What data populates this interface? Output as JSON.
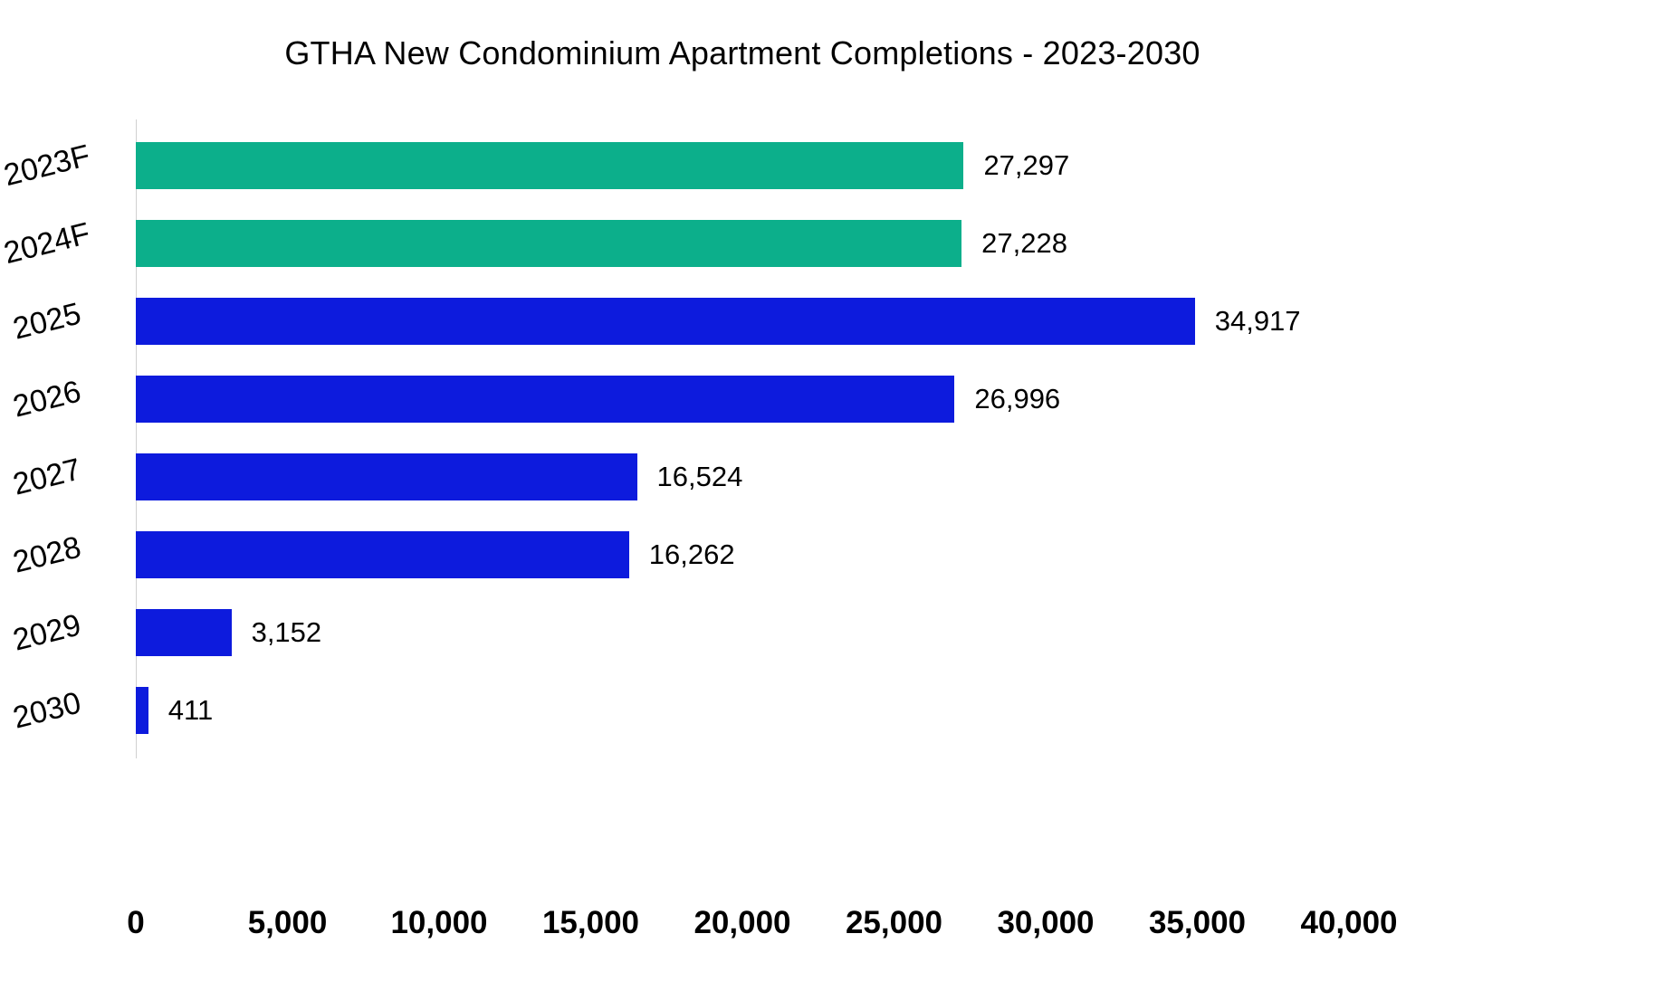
{
  "chart_data": {
    "type": "bar",
    "orientation": "horizontal",
    "title": "GTHA New Condominium Apartment Completions - 2023-2030",
    "categories": [
      "2023F",
      "2024F",
      "2025",
      "2026",
      "2027",
      "2028",
      "2029",
      "2030"
    ],
    "values": [
      27297,
      27228,
      34917,
      26996,
      16524,
      16262,
      3152,
      411
    ],
    "value_labels": [
      "27,297",
      "27,228",
      "34,917",
      "26,996",
      "16,524",
      "16,262",
      "3,152",
      "411"
    ],
    "bar_colors": [
      "#0caf8b",
      "#0caf8b",
      "#0d1bdd",
      "#0d1bdd",
      "#0d1bdd",
      "#0d1bdd",
      "#0d1bdd",
      "#0d1bdd"
    ],
    "colors": {
      "forecast_green": "#0caf8b",
      "projection_blue": "#0d1bdd"
    },
    "xlim": [
      0,
      40000
    ],
    "x_ticks": [
      {
        "value": 0,
        "label": "0"
      },
      {
        "value": 5000,
        "label": "5,000"
      },
      {
        "value": 10000,
        "label": "10,000"
      },
      {
        "value": 15000,
        "label": "15,000"
      },
      {
        "value": 20000,
        "label": "20,000"
      },
      {
        "value": 25000,
        "label": "25,000"
      },
      {
        "value": 30000,
        "label": "30,000"
      },
      {
        "value": 35000,
        "label": "35,000"
      },
      {
        "value": 40000,
        "label": "40,000"
      }
    ],
    "grid": false,
    "legend": false
  }
}
